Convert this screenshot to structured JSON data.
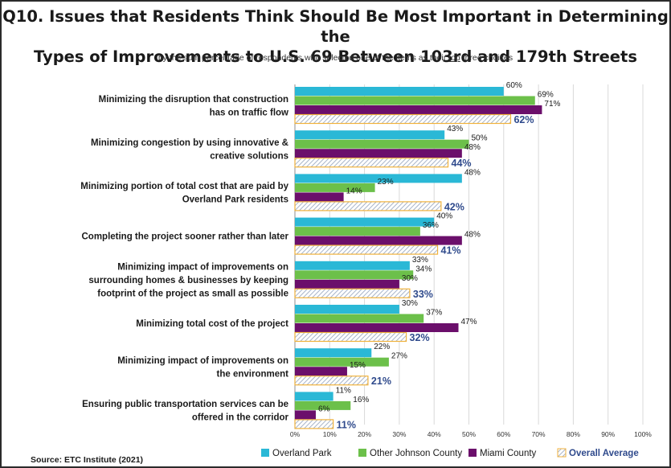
{
  "title_line1": "Q10. Issues that Residents Think Should Be Most Important in Determining the",
  "title_line2": "Types of Improvements to U.S. 69 Between 103rd and 179th Streets",
  "subtitle_pre": "by the sum percentage of respondents who selected one of the items as their ",
  "subtitle_underlined": "top",
  "subtitle_post": " three choices",
  "source": "Source:  ETC Institute (2021)",
  "colors": {
    "overland_park": "#2ab8d6",
    "other_johnson": "#6cc04a",
    "miami": "#6b0f6b",
    "overall_stroke": "#f0b23c",
    "overall_hatch": "#a8b4c8",
    "overall_label": "#2f4a8c"
  },
  "chart_data": {
    "type": "bar",
    "orientation": "horizontal",
    "categories": [
      [
        "Minimizing the disruption that construction",
        "has on traffic flow"
      ],
      [
        "Minimizing congestion by using innovative &",
        "creative solutions"
      ],
      [
        "Minimizing portion of total cost that are paid by",
        "Overland Park residents"
      ],
      [
        "Completing the project sooner rather than later"
      ],
      [
        "Minimizing impact of improvements on",
        "surrounding homes & businesses by keeping",
        "footprint of the project as small as possible"
      ],
      [
        "Minimizing total cost of the project"
      ],
      [
        "Minimizing impact of improvements on",
        "the environment"
      ],
      [
        "Ensuring public transportation services can be",
        "offered in the corridor"
      ]
    ],
    "series": [
      {
        "name": "Overland Park",
        "values": [
          60,
          43,
          48,
          40,
          33,
          30,
          22,
          11
        ]
      },
      {
        "name": "Other Johnson County",
        "values": [
          69,
          50,
          23,
          36,
          34,
          37,
          27,
          16
        ]
      },
      {
        "name": "Miami County",
        "values": [
          71,
          48,
          14,
          48,
          30,
          47,
          15,
          6
        ]
      },
      {
        "name": "Overall Average",
        "values": [
          62,
          44,
          42,
          41,
          33,
          32,
          21,
          11
        ]
      }
    ],
    "value_suffix": "%",
    "xlim": [
      0,
      100
    ],
    "x_ticks": [
      "0%",
      "10%",
      "20%",
      "30%",
      "40%",
      "50%",
      "60%",
      "70%",
      "80%",
      "90%",
      "100%"
    ],
    "grid": true,
    "legend_position": "bottom"
  }
}
